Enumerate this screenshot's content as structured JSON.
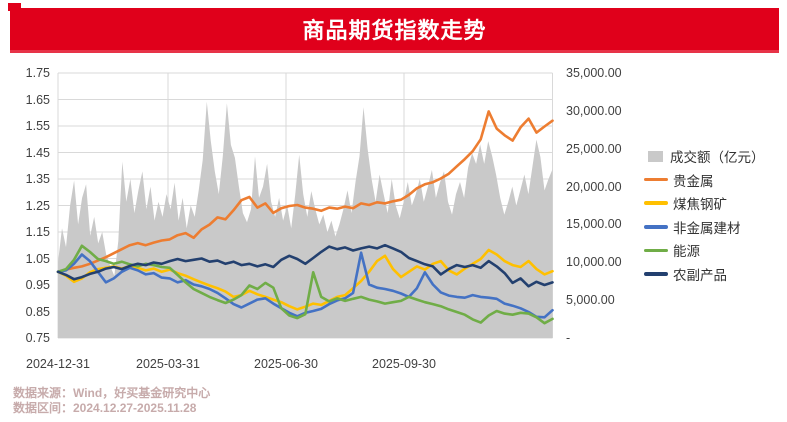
{
  "title": "商品期货指数走势",
  "footer": {
    "line1": "数据来源：Wind，好买基金研究中心",
    "line2": "数据区间：2024.12.27-2025.11.28"
  },
  "colors": {
    "banner_red": "#e0001b",
    "grid": "#d9d9d9",
    "axis_text": "#414141",
    "volume_gray": "#c9c9c9",
    "precious_metals_orange": "#ed7d31",
    "coal_steel_yellow": "#ffc000",
    "nonmetal_blue": "#4472c4",
    "energy_green": "#70ad47",
    "agri_navy": "#23406f",
    "footer_text": "#c7abab"
  },
  "chart_data": {
    "type": "line",
    "title": "商品期货指数走势",
    "x_tick_labels": [
      "2024-12-31",
      "2025-03-31",
      "2025-06-30",
      "2025-09-30"
    ],
    "left_axis": {
      "min": 0.75,
      "max": 1.75,
      "tick_labels": [
        "1.75",
        "1.65",
        "1.55",
        "1.45",
        "1.35",
        "1.25",
        "1.15",
        "1.05",
        "0.95",
        "0.85",
        "0.75"
      ]
    },
    "right_axis": {
      "min": 0,
      "max": 35000,
      "tick_labels": [
        "35,000.00",
        "30,000.00",
        "25,000.00",
        "20,000.00",
        "15,000.00",
        "10,000.00",
        "5,000.00",
        "-"
      ]
    },
    "legend": [
      {
        "label": "成交额（亿元）",
        "color": "#c9c9c9",
        "swatch": "area"
      },
      {
        "label": "贵金属",
        "color": "#ed7d31",
        "swatch": "line"
      },
      {
        "label": "煤焦钢矿",
        "color": "#ffc000",
        "swatch": "line"
      },
      {
        "label": "非金属建材",
        "color": "#4472c4",
        "swatch": "line"
      },
      {
        "label": "能源",
        "color": "#70ad47",
        "swatch": "line"
      },
      {
        "label": "农副产品",
        "color": "#23406f",
        "swatch": "line"
      }
    ],
    "volume": {
      "name": "成交额（亿元）",
      "axis": "right",
      "values": [
        10000,
        14500,
        12000,
        17500,
        20800,
        15000,
        18500,
        20300,
        13500,
        16000,
        12500,
        14000,
        11000,
        9500,
        8200,
        12800,
        23300,
        18000,
        21000,
        16500,
        19500,
        22000,
        17000,
        20000,
        15500,
        18000,
        16000,
        19000,
        17000,
        20500,
        15500,
        18500,
        14500,
        17500,
        16000,
        19500,
        23500,
        31200,
        26000,
        22000,
        19000,
        24000,
        31000,
        25500,
        23800,
        20000,
        16500,
        15300,
        17000,
        24000,
        18500,
        20000,
        23000,
        18000,
        16000,
        18500,
        15500,
        17500,
        14500,
        18900,
        24200,
        19000,
        16000,
        19400,
        17000,
        15000,
        16300,
        14000,
        15500,
        13400,
        15000,
        17000,
        19500,
        16500,
        20600,
        24000,
        30500,
        25000,
        21000,
        18000,
        21600,
        19000,
        16500,
        21000,
        17500,
        15800,
        18000,
        20600,
        17500,
        19000,
        21000,
        18000,
        20000,
        22200,
        18500,
        20500,
        22000,
        18000,
        16300,
        19000,
        20600,
        18500,
        22500,
        24400,
        23000,
        25600,
        23000,
        26000,
        24000,
        21500,
        18500,
        16300,
        18000,
        20000,
        17500,
        19500,
        21600,
        19000,
        22600,
        26200,
        23900,
        19500,
        21000,
        22300
      ]
    },
    "series": [
      {
        "name": "贵金属",
        "key": "precious-metals",
        "color": "#ed7d31",
        "axis": "left",
        "values": [
          1.0,
          1.008,
          1.015,
          1.02,
          1.03,
          1.042,
          1.055,
          1.07,
          1.085,
          1.1,
          1.108,
          1.1,
          1.11,
          1.118,
          1.122,
          1.138,
          1.146,
          1.128,
          1.16,
          1.178,
          1.205,
          1.198,
          1.232,
          1.27,
          1.282,
          1.242,
          1.258,
          1.222,
          1.24,
          1.248,
          1.252,
          1.242,
          1.238,
          1.23,
          1.242,
          1.238,
          1.246,
          1.24,
          1.258,
          1.252,
          1.262,
          1.258,
          1.266,
          1.272,
          1.29,
          1.315,
          1.33,
          1.338,
          1.352,
          1.37,
          1.398,
          1.425,
          1.455,
          1.5,
          1.605,
          1.54,
          1.515,
          1.495,
          1.545,
          1.578,
          1.525,
          1.548,
          1.57
        ]
      },
      {
        "name": "煤焦钢矿",
        "key": "coal-steel",
        "color": "#ffc000",
        "axis": "left",
        "values": [
          1.0,
          0.985,
          0.962,
          0.975,
          0.998,
          1.01,
          1.015,
          1.02,
          1.012,
          1.022,
          1.015,
          1.005,
          1.012,
          1.0,
          1.008,
          0.995,
          0.985,
          0.972,
          0.96,
          0.948,
          0.938,
          0.925,
          0.905,
          0.912,
          0.928,
          0.915,
          0.905,
          0.895,
          0.885,
          0.87,
          0.858,
          0.868,
          0.88,
          0.875,
          0.89,
          0.905,
          0.912,
          0.938,
          0.965,
          1.0,
          1.04,
          1.06,
          1.01,
          0.98,
          1.0,
          1.02,
          1.008,
          1.03,
          1.04,
          1.005,
          0.99,
          1.012,
          1.03,
          1.048,
          1.082,
          1.065,
          1.04,
          1.025,
          1.018,
          1.04,
          1.01,
          0.99,
          1.002
        ]
      },
      {
        "name": "非金属建材",
        "key": "nonmetal-materials",
        "color": "#4472c4",
        "axis": "left",
        "values": [
          1.0,
          1.005,
          1.03,
          1.065,
          1.04,
          1.0,
          0.96,
          0.975,
          1.0,
          1.015,
          1.005,
          0.99,
          0.995,
          0.978,
          0.975,
          0.96,
          0.968,
          0.952,
          0.945,
          0.935,
          0.92,
          0.9,
          0.878,
          0.865,
          0.88,
          0.895,
          0.9,
          0.88,
          0.862,
          0.845,
          0.832,
          0.845,
          0.852,
          0.86,
          0.878,
          0.892,
          0.9,
          0.92,
          1.072,
          0.952,
          0.94,
          0.935,
          0.928,
          0.918,
          0.905,
          0.938,
          0.998,
          0.952,
          0.922,
          0.91,
          0.905,
          0.902,
          0.912,
          0.905,
          0.902,
          0.898,
          0.88,
          0.872,
          0.862,
          0.848,
          0.83,
          0.828,
          0.855
        ]
      },
      {
        "name": "能源",
        "key": "energy",
        "color": "#70ad47",
        "axis": "left",
        "values": [
          1.0,
          1.01,
          1.045,
          1.098,
          1.075,
          1.048,
          1.04,
          1.03,
          1.038,
          1.028,
          1.02,
          1.03,
          1.025,
          1.018,
          1.015,
          0.988,
          0.96,
          0.935,
          0.92,
          0.905,
          0.893,
          0.882,
          0.895,
          0.912,
          0.948,
          0.935,
          0.958,
          0.94,
          0.862,
          0.835,
          0.825,
          0.84,
          0.998,
          0.905,
          0.888,
          0.9,
          0.89,
          0.898,
          0.905,
          0.895,
          0.888,
          0.88,
          0.885,
          0.89,
          0.905,
          0.895,
          0.885,
          0.878,
          0.87,
          0.858,
          0.848,
          0.838,
          0.82,
          0.808,
          0.835,
          0.852,
          0.842,
          0.838,
          0.845,
          0.842,
          0.828,
          0.806,
          0.822
        ]
      },
      {
        "name": "农副产品",
        "key": "agri-products",
        "color": "#23406f",
        "axis": "left",
        "values": [
          1.0,
          0.988,
          0.972,
          0.98,
          0.992,
          1.0,
          1.012,
          1.018,
          1.01,
          1.022,
          1.03,
          1.025,
          1.035,
          1.03,
          1.04,
          1.048,
          1.04,
          1.045,
          1.05,
          1.038,
          1.042,
          1.03,
          1.038,
          1.025,
          1.03,
          1.02,
          1.028,
          1.018,
          1.045,
          1.06,
          1.048,
          1.03,
          1.052,
          1.075,
          1.095,
          1.085,
          1.092,
          1.08,
          1.088,
          1.095,
          1.088,
          1.1,
          1.088,
          1.075,
          1.052,
          1.04,
          1.028,
          1.02,
          0.99,
          1.01,
          1.025,
          1.018,
          1.025,
          1.015,
          1.04,
          1.02,
          0.995,
          0.958,
          0.975,
          0.945,
          0.962,
          0.95,
          0.96
        ]
      }
    ]
  }
}
